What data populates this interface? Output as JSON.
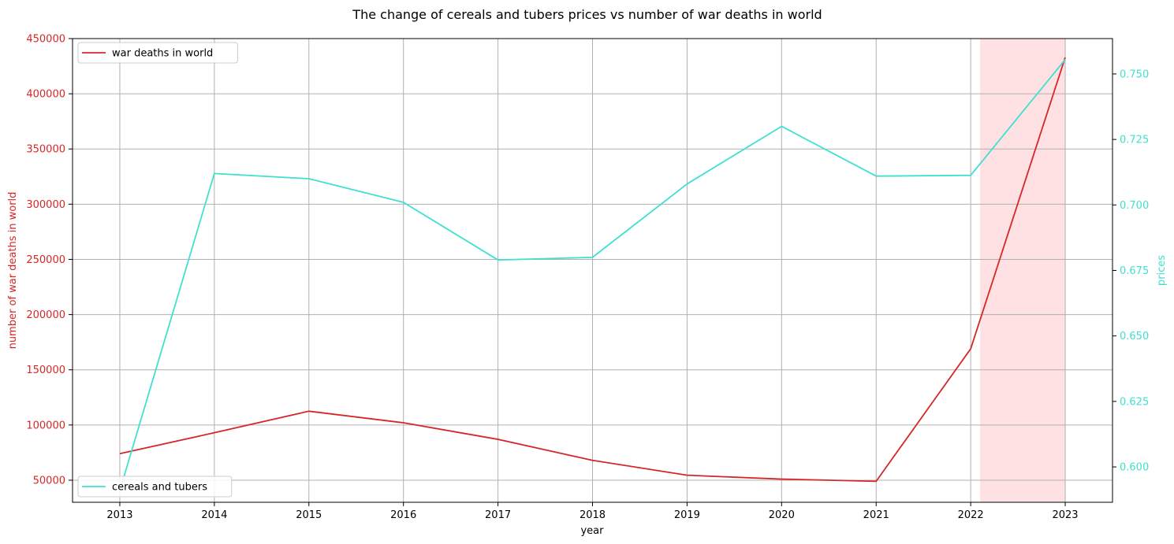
{
  "chart_data": {
    "type": "line",
    "title": "The change of cereals and tubers prices vs number of war deaths in world",
    "xlabel": "year",
    "x": [
      2013,
      2014,
      2015,
      2016,
      2017,
      2018,
      2019,
      2020,
      2021,
      2022,
      2023
    ],
    "x_ticks": [
      "2013",
      "2014",
      "2015",
      "2016",
      "2017",
      "2018",
      "2019",
      "2020",
      "2021",
      "2022",
      "2023"
    ],
    "xlim": [
      2012.5,
      2023.5
    ],
    "grid": true,
    "highlight_span": {
      "x_start": 2022.1,
      "x_end": 2023.0,
      "color": "#ffe0e3"
    },
    "left_axis": {
      "label": "number of war deaths in world",
      "color": "#d62728",
      "ylim": [
        30000,
        450000
      ],
      "ticks": [
        "50000",
        "100000",
        "150000",
        "200000",
        "250000",
        "300000",
        "350000",
        "400000",
        "450000"
      ],
      "tick_values": [
        50000,
        100000,
        150000,
        200000,
        250000,
        300000,
        350000,
        400000,
        450000
      ]
    },
    "right_axis": {
      "label": "prices",
      "color": "#40e0d0",
      "ylim": [
        0.5865,
        0.7635
      ],
      "ticks": [
        "0.600",
        "0.625",
        "0.650",
        "0.675",
        "0.700",
        "0.725",
        "0.750"
      ],
      "tick_values": [
        0.6,
        0.625,
        0.65,
        0.675,
        0.7,
        0.725,
        0.75
      ]
    },
    "series": [
      {
        "name": "war deaths in world",
        "axis": "left",
        "color": "#d62728",
        "legend_position": "upper-left",
        "values": [
          74000,
          93000,
          112500,
          102000,
          87000,
          68000,
          54500,
          51000,
          49000,
          169000,
          433000
        ]
      },
      {
        "name": "cereals and tubers",
        "axis": "right",
        "color": "#40e0d0",
        "legend_position": "lower-left",
        "values": [
          0.591,
          0.712,
          0.71,
          0.701,
          0.679,
          0.68,
          0.708,
          0.73,
          0.711,
          0.7113,
          0.7555
        ]
      }
    ]
  }
}
